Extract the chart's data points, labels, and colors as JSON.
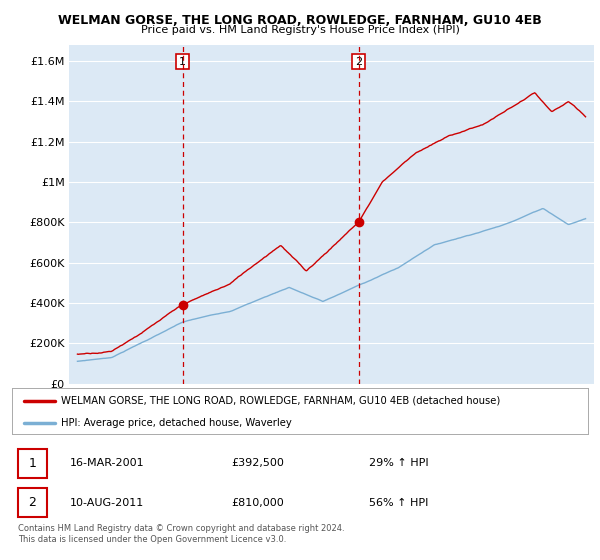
{
  "title": "WELMAN GORSE, THE LONG ROAD, ROWLEDGE, FARNHAM, GU10 4EB",
  "subtitle": "Price paid vs. HM Land Registry's House Price Index (HPI)",
  "ytick_values": [
    0,
    200000,
    400000,
    600000,
    800000,
    1000000,
    1200000,
    1400000,
    1600000
  ],
  "ylim": [
    0,
    1680000
  ],
  "year_start": 1995,
  "year_end": 2025,
  "sale1_date": "16-MAR-2001",
  "sale1_price_str": "£392,500",
  "sale1_hpi_pct": "29% ↑ HPI",
  "sale2_date": "10-AUG-2011",
  "sale2_price_str": "£810,000",
  "sale2_hpi_pct": "56% ↑ HPI",
  "sale1_year": 2001.21,
  "sale2_year": 2011.61,
  "hpi_line_color": "#7bafd4",
  "price_line_color": "#cc0000",
  "dashed_line_color": "#cc0000",
  "bg_color": "#dce9f5",
  "plot_bg": "#ffffff",
  "legend_line1": "WELMAN GORSE, THE LONG ROAD, ROWLEDGE, FARNHAM, GU10 4EB (detached house)",
  "legend_line2": "HPI: Average price, detached house, Waverley",
  "footer1": "Contains HM Land Registry data © Crown copyright and database right 2024.",
  "footer2": "This data is licensed under the Open Government Licence v3.0."
}
